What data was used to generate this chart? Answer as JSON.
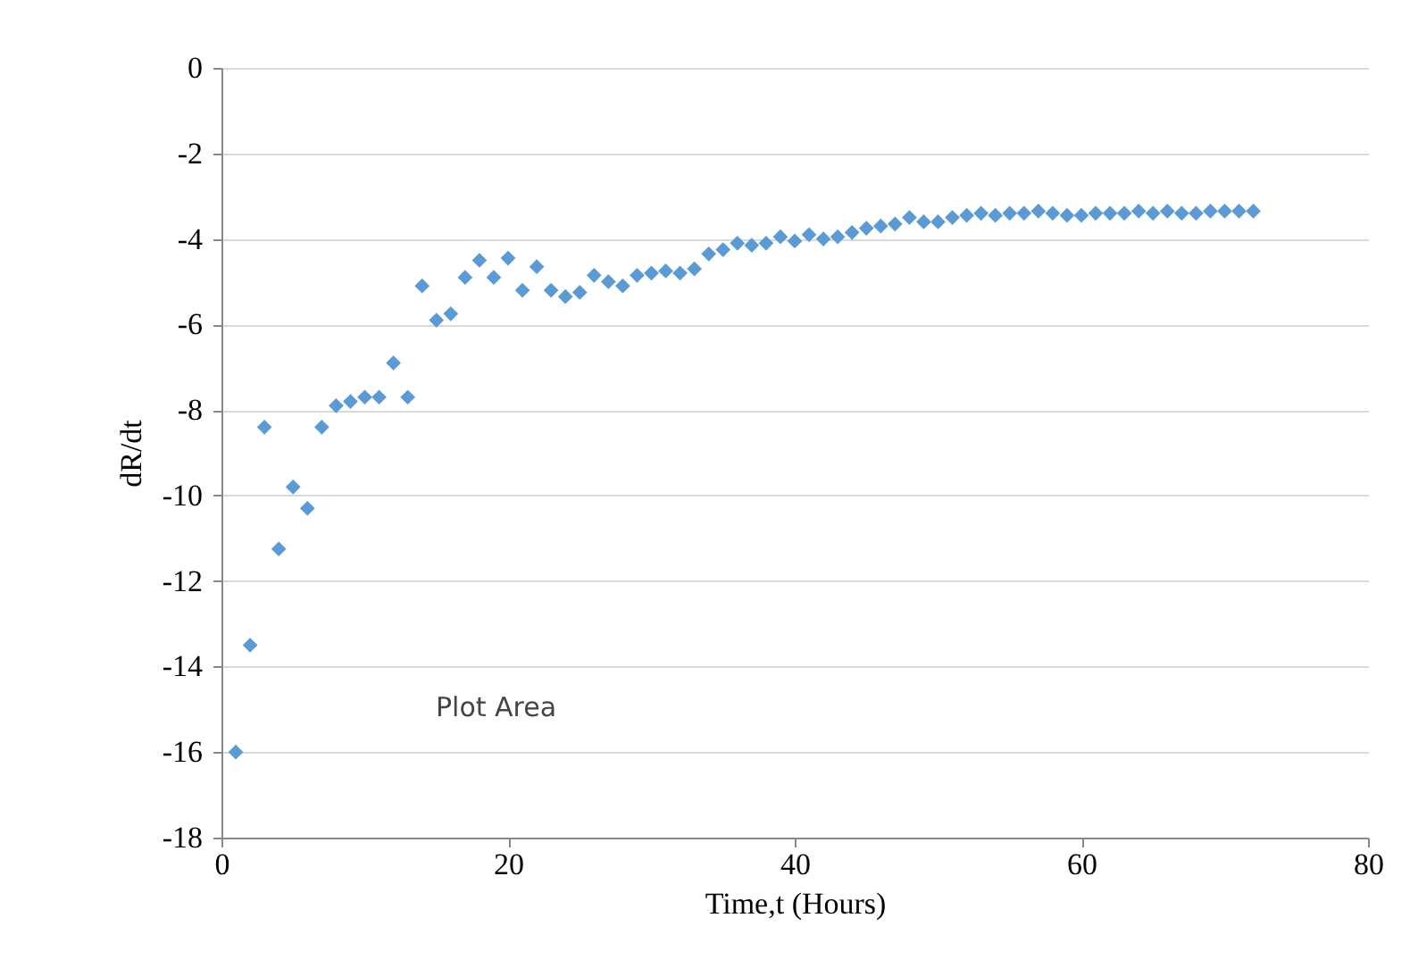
{
  "chart_data": {
    "type": "scatter",
    "xlabel": "Time,t (Hours)",
    "ylabel": "dR/dt",
    "annotations": [
      "Plot Area"
    ],
    "x": [
      1,
      2,
      3,
      4,
      5,
      6,
      7,
      8,
      9,
      10,
      11,
      12,
      13,
      14,
      15,
      16,
      17,
      18,
      19,
      20,
      21,
      22,
      23,
      24,
      25,
      26,
      27,
      28,
      29,
      30,
      31,
      32,
      33,
      34,
      35,
      36,
      37,
      38,
      39,
      40,
      41,
      42,
      43,
      44,
      45,
      46,
      47,
      48,
      49,
      50,
      51,
      52,
      53,
      54,
      55,
      56,
      57,
      58,
      59,
      60,
      61,
      62,
      63,
      64,
      65,
      66,
      67,
      68,
      69,
      70,
      71,
      72
    ],
    "series": [
      {
        "color": "#5b9bd5",
        "values": [
          -16.0,
          -13.5,
          -8.4,
          -11.25,
          -9.8,
          -10.3,
          -8.4,
          -7.9,
          -7.8,
          -7.7,
          -7.7,
          -6.9,
          -7.7,
          -5.1,
          -5.9,
          -5.75,
          -4.9,
          -4.5,
          -4.9,
          -4.45,
          -5.2,
          -4.65,
          -5.2,
          -5.35,
          -5.25,
          -4.85,
          -5.0,
          -5.1,
          -4.85,
          -4.8,
          -4.75,
          -4.8,
          -4.7,
          -4.35,
          -4.25,
          -4.1,
          -4.15,
          -4.1,
          -3.95,
          -4.05,
          -3.9,
          -4.0,
          -3.95,
          -3.85,
          -3.75,
          -3.7,
          -3.65,
          -3.5,
          -3.6,
          -3.6,
          -3.5,
          -3.45,
          -3.4,
          -3.45,
          -3.4,
          -3.4,
          -3.35,
          -3.4,
          -3.45,
          -3.45,
          -3.4,
          -3.4,
          -3.4,
          -3.35,
          -3.4,
          -3.35,
          -3.4,
          -3.4,
          -3.35,
          -3.35,
          -3.35,
          -3.35
        ]
      }
    ],
    "xlim": [
      0,
      80
    ],
    "xticks": [
      0,
      20,
      40,
      60,
      80
    ],
    "ylim": [
      -18,
      0
    ],
    "yticks": [
      -18,
      -16,
      -14,
      -12,
      -10,
      -8,
      -6,
      -4,
      -2,
      0
    ],
    "grid": "y",
    "marker": "diamond"
  }
}
